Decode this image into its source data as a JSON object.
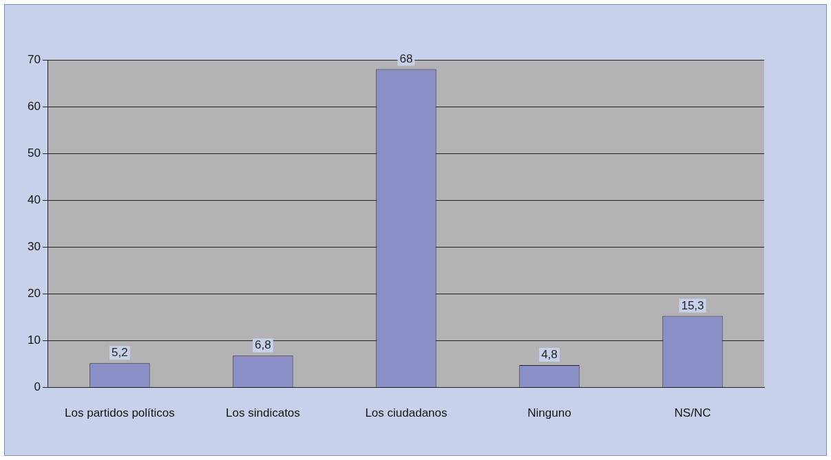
{
  "chart_data": {
    "type": "bar",
    "categories": [
      "Los partidos políticos",
      "Los sindicatos",
      "Los ciudadanos",
      "Ninguno",
      "NS/NC"
    ],
    "values": [
      5.2,
      6.8,
      68,
      4.8,
      15.3
    ],
    "value_labels": [
      "5,2",
      "6,8",
      "68",
      "4,8",
      "15,3"
    ],
    "color": "#8b8fc8",
    "ylim": [
      0,
      70
    ],
    "yticks": [
      0,
      10,
      20,
      30,
      40,
      50,
      60,
      70
    ],
    "grid": "y",
    "legend": false
  }
}
